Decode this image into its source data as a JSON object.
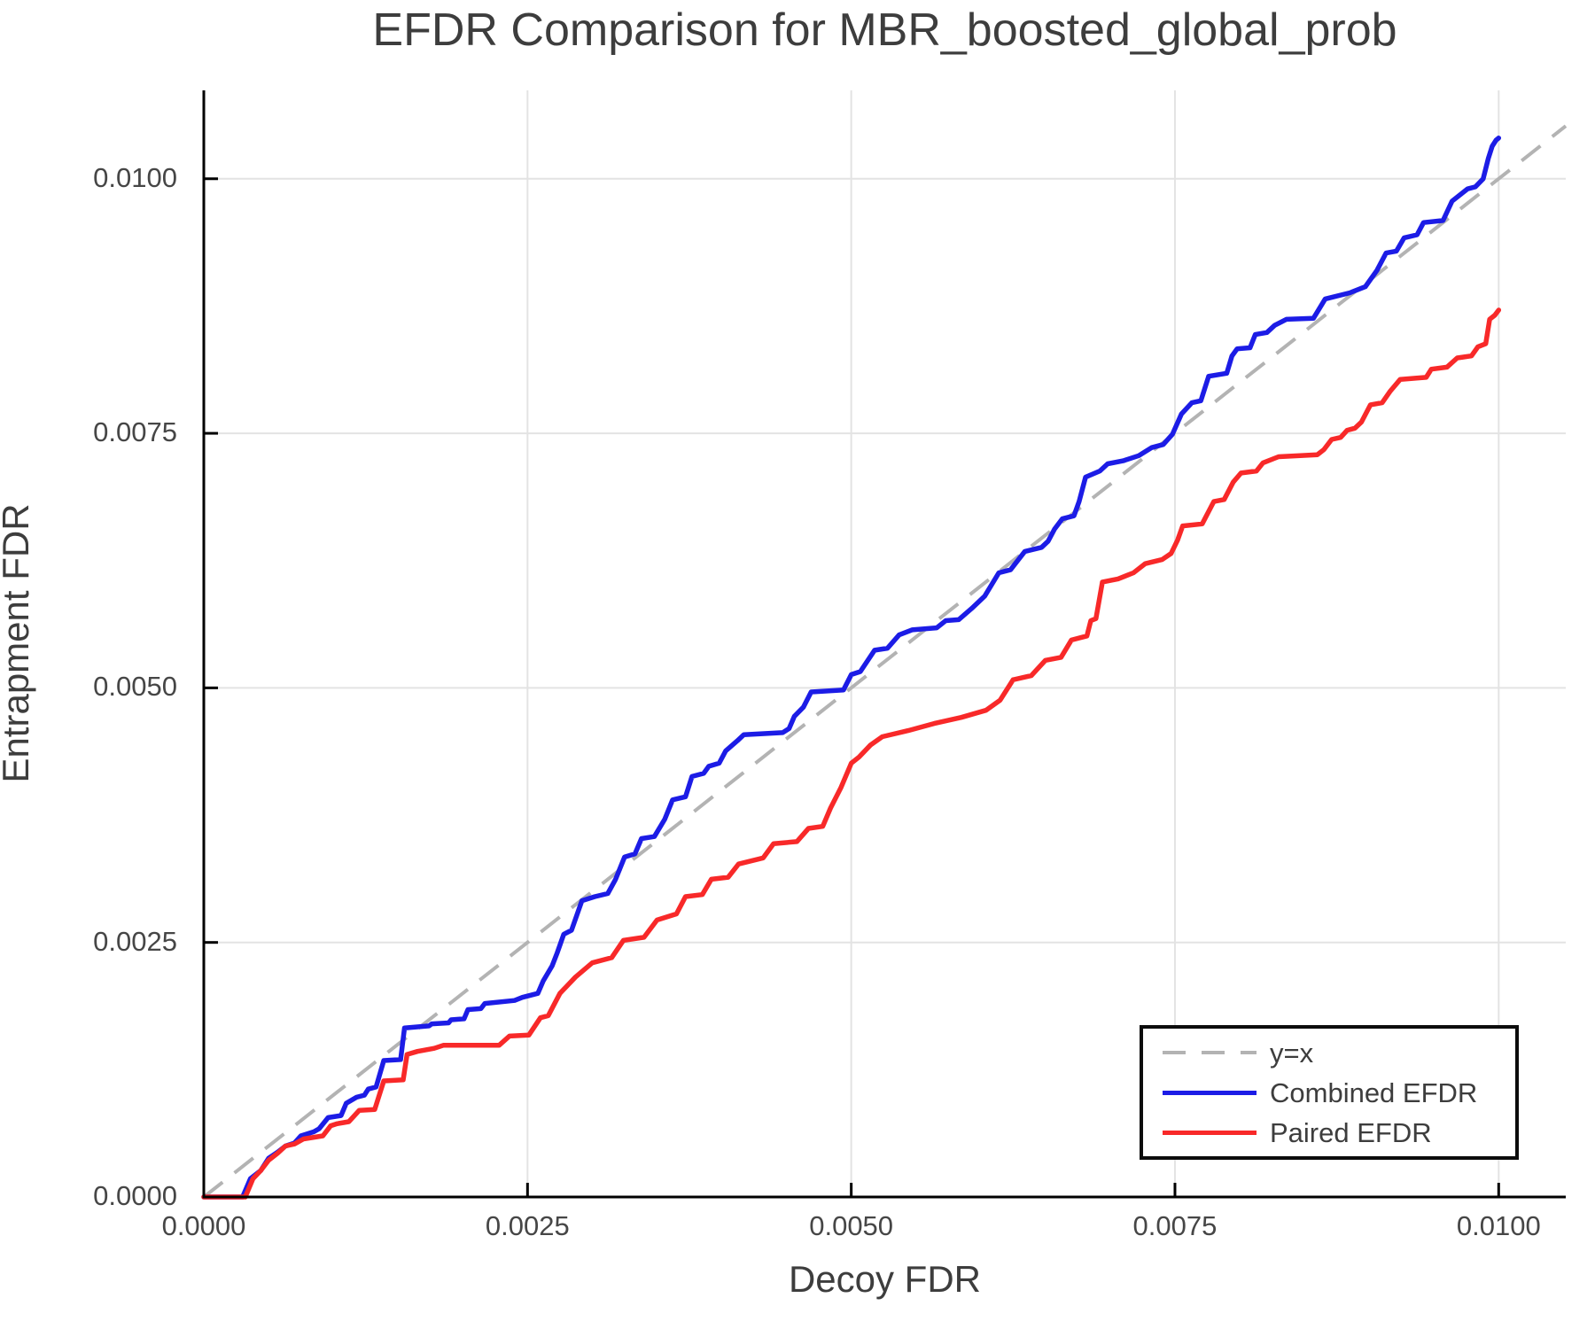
{
  "title": "EFDR Comparison for MBR_boosted_global_prob",
  "axes": {
    "x": {
      "label": "Decoy FDR",
      "tick_values": [
        0,
        0.0025,
        0.005,
        0.0075,
        0.01
      ],
      "tick_labels": [
        "0.0000",
        "0.0025",
        "0.0050",
        "0.0075",
        "0.0100"
      ]
    },
    "y": {
      "label": "Entrapment FDR",
      "tick_values": [
        0,
        0.0025,
        0.005,
        0.0075,
        0.01
      ],
      "tick_labels": [
        "0.0000",
        "0.0025",
        "0.0050",
        "0.0075",
        "0.0100"
      ]
    }
  },
  "legend": {
    "items": [
      {
        "label": "y=x",
        "color": "#b3b3b3",
        "style": "dashed"
      },
      {
        "label": "Combined EFDR",
        "color": "#1c1ce6",
        "style": "solid"
      },
      {
        "label": "Paired EFDR",
        "color": "#f82929",
        "style": "solid"
      }
    ]
  },
  "chart_data": {
    "type": "line",
    "title": "EFDR Comparison for MBR_boosted_global_prob",
    "xlabel": "Decoy FDR",
    "ylabel": "Entrapment FDR",
    "xlim": [
      0,
      0.010518
    ],
    "ylim": [
      0,
      0.010868
    ],
    "grid": true,
    "grid_color": "#e3e3e3",
    "legend_position": "bottom-right",
    "reference_line": {
      "name": "y=x",
      "from": [
        0,
        0
      ],
      "to": [
        0.010518,
        0.010518
      ],
      "color": "#b3b3b3",
      "dashed": true
    },
    "series": [
      {
        "name": "Combined EFDR",
        "color": "#1c1ce6",
        "points": [
          [
            0,
            0
          ],
          [
            0.0003,
            0
          ],
          [
            0.00036,
            0.00018
          ],
          [
            0.00044,
            0.00026
          ],
          [
            0.0005,
            0.00038
          ],
          [
            0.00057,
            0.00044
          ],
          [
            0.00063,
            0.0005
          ],
          [
            0.0007,
            0.00053
          ],
          [
            0.00075,
            0.0006
          ],
          [
            0.00085,
            0.00064
          ],
          [
            0.00089,
            0.00067
          ],
          [
            0.00096,
            0.00078
          ],
          [
            0.00106,
            0.0008
          ],
          [
            0.0011,
            0.00092
          ],
          [
            0.00118,
            0.00098
          ],
          [
            0.00124,
            0.001
          ],
          [
            0.00127,
            0.00106
          ],
          [
            0.00133,
            0.00108
          ],
          [
            0.00139,
            0.00134
          ],
          [
            0.00152,
            0.00135
          ],
          [
            0.00155,
            0.00166
          ],
          [
            0.00174,
            0.00168
          ],
          [
            0.00176,
            0.0017
          ],
          [
            0.00189,
            0.00171
          ],
          [
            0.00191,
            0.00174
          ],
          [
            0.00201,
            0.00175
          ],
          [
            0.00204,
            0.00184
          ],
          [
            0.00214,
            0.00185
          ],
          [
            0.00217,
            0.0019
          ],
          [
            0.0024,
            0.00193
          ],
          [
            0.00246,
            0.00196
          ],
          [
            0.00258,
            0.002
          ],
          [
            0.00262,
            0.00212
          ],
          [
            0.00269,
            0.00227
          ],
          [
            0.00273,
            0.0024
          ],
          [
            0.00278,
            0.00258
          ],
          [
            0.00284,
            0.00262
          ],
          [
            0.00292,
            0.00291
          ],
          [
            0.00302,
            0.00295
          ],
          [
            0.00312,
            0.00298
          ],
          [
            0.00318,
            0.00312
          ],
          [
            0.00325,
            0.00334
          ],
          [
            0.00333,
            0.00337
          ],
          [
            0.00338,
            0.00352
          ],
          [
            0.00348,
            0.00354
          ],
          [
            0.00356,
            0.00371
          ],
          [
            0.00362,
            0.0039
          ],
          [
            0.00372,
            0.00393
          ],
          [
            0.00377,
            0.00413
          ],
          [
            0.00386,
            0.00416
          ],
          [
            0.0039,
            0.00423
          ],
          [
            0.00398,
            0.00426
          ],
          [
            0.00403,
            0.00438
          ],
          [
            0.00412,
            0.00448
          ],
          [
            0.00417,
            0.00454
          ],
          [
            0.00447,
            0.00456
          ],
          [
            0.00452,
            0.0046
          ],
          [
            0.00456,
            0.00472
          ],
          [
            0.00463,
            0.00481
          ],
          [
            0.00469,
            0.00496
          ],
          [
            0.00494,
            0.00498
          ],
          [
            0.005,
            0.00513
          ],
          [
            0.00507,
            0.00516
          ],
          [
            0.00518,
            0.00537
          ],
          [
            0.00528,
            0.00539
          ],
          [
            0.00537,
            0.00552
          ],
          [
            0.00547,
            0.00557
          ],
          [
            0.00566,
            0.00559
          ],
          [
            0.00573,
            0.00566
          ],
          [
            0.00583,
            0.00567
          ],
          [
            0.00593,
            0.00578
          ],
          [
            0.00603,
            0.0059
          ],
          [
            0.00614,
            0.00613
          ],
          [
            0.00623,
            0.00616
          ],
          [
            0.00634,
            0.00634
          ],
          [
            0.00647,
            0.00638
          ],
          [
            0.00652,
            0.00644
          ],
          [
            0.00657,
            0.00656
          ],
          [
            0.00663,
            0.00666
          ],
          [
            0.00672,
            0.00669
          ],
          [
            0.00676,
            0.00683
          ],
          [
            0.00681,
            0.00707
          ],
          [
            0.00692,
            0.00713
          ],
          [
            0.00698,
            0.0072
          ],
          [
            0.0071,
            0.00723
          ],
          [
            0.00722,
            0.00728
          ],
          [
            0.00732,
            0.00736
          ],
          [
            0.00741,
            0.00739
          ],
          [
            0.00748,
            0.00749
          ],
          [
            0.00755,
            0.00769
          ],
          [
            0.00763,
            0.0078
          ],
          [
            0.0077,
            0.00782
          ],
          [
            0.00776,
            0.00806
          ],
          [
            0.0079,
            0.00809
          ],
          [
            0.00794,
            0.00826
          ],
          [
            0.00798,
            0.00833
          ],
          [
            0.00808,
            0.00834
          ],
          [
            0.00812,
            0.00847
          ],
          [
            0.00821,
            0.00849
          ],
          [
            0.00827,
            0.00856
          ],
          [
            0.00836,
            0.00862
          ],
          [
            0.00857,
            0.00863
          ],
          [
            0.00866,
            0.00882
          ],
          [
            0.00885,
            0.00888
          ],
          [
            0.00897,
            0.00894
          ],
          [
            0.00906,
            0.0091
          ],
          [
            0.00913,
            0.00927
          ],
          [
            0.00921,
            0.00929
          ],
          [
            0.00927,
            0.00942
          ],
          [
            0.00937,
            0.00945
          ],
          [
            0.00942,
            0.00957
          ],
          [
            0.00957,
            0.00959
          ],
          [
            0.00964,
            0.00978
          ],
          [
            0.00976,
            0.0099
          ],
          [
            0.00982,
            0.00992
          ],
          [
            0.00988,
            0.01
          ],
          [
            0.00992,
            0.0102
          ],
          [
            0.00995,
            0.01032
          ],
          [
            0.00998,
            0.01038
          ],
          [
            0.01,
            0.0104
          ]
        ]
      },
      {
        "name": "Paired EFDR",
        "color": "#f82929",
        "points": [
          [
            0,
            0
          ],
          [
            0.00032,
            0
          ],
          [
            0.00038,
            0.00018
          ],
          [
            0.00044,
            0.00026
          ],
          [
            0.0005,
            0.00036
          ],
          [
            0.00057,
            0.00043
          ],
          [
            0.00063,
            0.0005
          ],
          [
            0.0007,
            0.00052
          ],
          [
            0.00077,
            0.00057
          ],
          [
            0.00092,
            0.0006
          ],
          [
            0.00098,
            0.0007
          ],
          [
            0.00103,
            0.00072
          ],
          [
            0.00112,
            0.00074
          ],
          [
            0.0012,
            0.00085
          ],
          [
            0.00132,
            0.00086
          ],
          [
            0.00139,
            0.00114
          ],
          [
            0.00154,
            0.00115
          ],
          [
            0.00157,
            0.0014
          ],
          [
            0.00165,
            0.00143
          ],
          [
            0.00178,
            0.00146
          ],
          [
            0.00185,
            0.00149
          ],
          [
            0.00228,
            0.00149
          ],
          [
            0.00236,
            0.00158
          ],
          [
            0.00251,
            0.00159
          ],
          [
            0.0026,
            0.00176
          ],
          [
            0.00266,
            0.00178
          ],
          [
            0.00275,
            0.002
          ],
          [
            0.00287,
            0.00216
          ],
          [
            0.003,
            0.0023
          ],
          [
            0.00315,
            0.00235
          ],
          [
            0.00324,
            0.00252
          ],
          [
            0.0034,
            0.00255
          ],
          [
            0.0035,
            0.00272
          ],
          [
            0.00365,
            0.00278
          ],
          [
            0.00372,
            0.00295
          ],
          [
            0.00385,
            0.00297
          ],
          [
            0.00392,
            0.00312
          ],
          [
            0.00405,
            0.00314
          ],
          [
            0.00413,
            0.00327
          ],
          [
            0.00432,
            0.00333
          ],
          [
            0.0044,
            0.00347
          ],
          [
            0.00458,
            0.00349
          ],
          [
            0.00467,
            0.00362
          ],
          [
            0.00478,
            0.00364
          ],
          [
            0.00484,
            0.00382
          ],
          [
            0.00492,
            0.00402
          ],
          [
            0.005,
            0.00426
          ],
          [
            0.00506,
            0.00432
          ],
          [
            0.00515,
            0.00444
          ],
          [
            0.00524,
            0.00452
          ],
          [
            0.00544,
            0.00458
          ],
          [
            0.00564,
            0.00465
          ],
          [
            0.00585,
            0.00471
          ],
          [
            0.00604,
            0.00478
          ],
          [
            0.00615,
            0.00488
          ],
          [
            0.00625,
            0.00508
          ],
          [
            0.00639,
            0.00512
          ],
          [
            0.0065,
            0.00527
          ],
          [
            0.00662,
            0.0053
          ],
          [
            0.0067,
            0.00547
          ],
          [
            0.00682,
            0.00551
          ],
          [
            0.00685,
            0.00566
          ],
          [
            0.00689,
            0.00568
          ],
          [
            0.00694,
            0.00604
          ],
          [
            0.00706,
            0.00607
          ],
          [
            0.00718,
            0.00613
          ],
          [
            0.00727,
            0.00622
          ],
          [
            0.0074,
            0.00626
          ],
          [
            0.00747,
            0.00632
          ],
          [
            0.00752,
            0.00645
          ],
          [
            0.00756,
            0.00659
          ],
          [
            0.00771,
            0.00661
          ],
          [
            0.0078,
            0.00683
          ],
          [
            0.00788,
            0.00685
          ],
          [
            0.00795,
            0.00702
          ],
          [
            0.00801,
            0.00711
          ],
          [
            0.00813,
            0.00713
          ],
          [
            0.00818,
            0.00721
          ],
          [
            0.0083,
            0.00727
          ],
          [
            0.0086,
            0.00729
          ],
          [
            0.00865,
            0.00734
          ],
          [
            0.00871,
            0.00744
          ],
          [
            0.00878,
            0.00746
          ],
          [
            0.00883,
            0.00753
          ],
          [
            0.00889,
            0.00755
          ],
          [
            0.00894,
            0.00761
          ],
          [
            0.00901,
            0.00778
          ],
          [
            0.0091,
            0.0078
          ],
          [
            0.00916,
            0.00791
          ],
          [
            0.00924,
            0.00803
          ],
          [
            0.00944,
            0.00805
          ],
          [
            0.00948,
            0.00813
          ],
          [
            0.0096,
            0.00815
          ],
          [
            0.00968,
            0.00824
          ],
          [
            0.00979,
            0.00826
          ],
          [
            0.00984,
            0.00835
          ],
          [
            0.0099,
            0.00838
          ],
          [
            0.00993,
            0.00862
          ],
          [
            0.00997,
            0.00866
          ],
          [
            0.01,
            0.00871
          ]
        ]
      }
    ]
  }
}
